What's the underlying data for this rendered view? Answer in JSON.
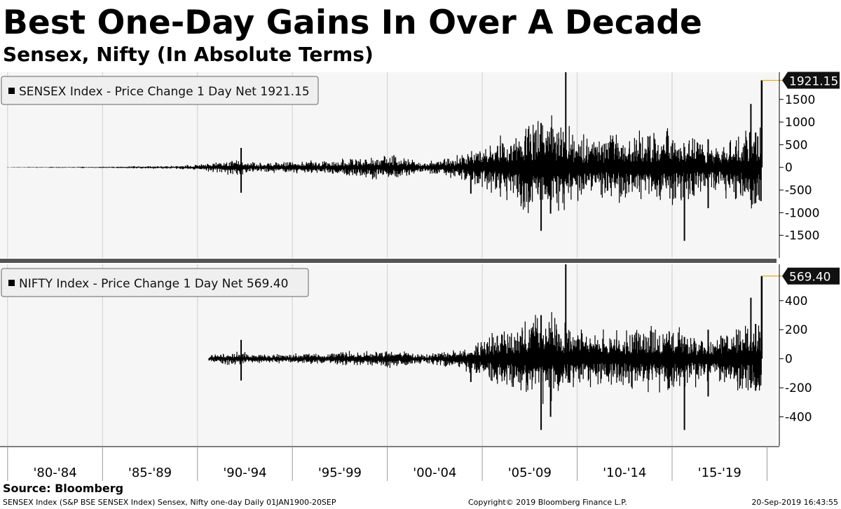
{
  "title": "Best One-Day Gains In Over A Decade",
  "subtitle": "Sensex, Nifty (In Absolute Terms)",
  "source": "Source: Bloomberg",
  "footer": {
    "left": "SENSEX Index (S&P BSE SENSEX Index) Sensex, Nifty one-day  Daily 01JAN1900-20SEP",
    "center": "Copyright© 2019 Bloomberg Finance L.P.",
    "right": "20-Sep-2019 16:43:55"
  },
  "colors": {
    "series": "#000000",
    "last_marker": "#e8a200",
    "panel_bg": "#f6f6f6",
    "grid": "#cfcfcf"
  },
  "chart_data": [
    {
      "type": "bar",
      "panel": "top",
      "legend": "SENSEX Index - Price Change 1 Day Net 1921.15",
      "legend_position": "top-left",
      "last_value_label": "1921.15",
      "last_value": 1921.15,
      "ylim": [
        -2000,
        2100
      ],
      "yticks": [
        1500,
        1000,
        500,
        0,
        -500,
        -1000,
        -1500
      ],
      "ytick_labels": [
        "1500",
        "1000",
        "500",
        "0",
        "-500",
        "-1000",
        "-1500"
      ],
      "series_start": 1980,
      "volatility_by_year": [
        [
          1980,
          2
        ],
        [
          1985,
          6
        ],
        [
          1989,
          15
        ],
        [
          1990,
          25
        ],
        [
          1991,
          45
        ],
        [
          1992,
          70
        ],
        [
          1993,
          40
        ],
        [
          1995,
          45
        ],
        [
          1998,
          70
        ],
        [
          2000,
          110
        ],
        [
          2002,
          45
        ],
        [
          2003,
          70
        ],
        [
          2004,
          110
        ],
        [
          2006,
          260
        ],
        [
          2008,
          430
        ],
        [
          2009,
          380
        ],
        [
          2010,
          260
        ],
        [
          2013,
          280
        ],
        [
          2015,
          330
        ],
        [
          2017,
          200
        ],
        [
          2019,
          340
        ]
      ],
      "spikes": [
        {
          "x": 1992.3,
          "high": 430,
          "low": -560
        },
        {
          "x": 2004.4,
          "high": 110,
          "low": -580
        },
        {
          "x": 2008.1,
          "high": 980,
          "low": -1400
        },
        {
          "x": 2008.6,
          "high": 500,
          "low": -1020
        },
        {
          "x": 2009.4,
          "high": 2100,
          "low": -250
        },
        {
          "x": 2015.65,
          "high": 450,
          "low": -1620
        },
        {
          "x": 2016.9,
          "high": 620,
          "low": -900
        },
        {
          "x": 2019.15,
          "high": 1400,
          "low": -720
        },
        {
          "x": 2019.4,
          "high": 770,
          "low": -790
        }
      ],
      "last_bar": {
        "x": 2019.72,
        "value": 1921.15
      }
    },
    {
      "type": "bar",
      "panel": "bottom",
      "legend": "NIFTY Index - Price Change 1 Day Net 569.40",
      "legend_position": "top-left",
      "last_value_label": "569.40",
      "last_value": 569.4,
      "ylim": [
        -600,
        650
      ],
      "yticks": [
        400,
        200,
        0,
        -200,
        -400
      ],
      "ytick_labels": [
        "400",
        "200",
        "0",
        "-200",
        "-400"
      ],
      "series_start": 1990.6,
      "volatility_by_year": [
        [
          1990.6,
          10
        ],
        [
          1992,
          18
        ],
        [
          1994,
          12
        ],
        [
          1997,
          15
        ],
        [
          2000,
          25
        ],
        [
          2002,
          12
        ],
        [
          2004,
          30
        ],
        [
          2006,
          75
        ],
        [
          2008,
          125
        ],
        [
          2009,
          110
        ],
        [
          2010,
          75
        ],
        [
          2013,
          80
        ],
        [
          2015,
          95
        ],
        [
          2017,
          55
        ],
        [
          2019,
          100
        ]
      ],
      "spikes": [
        {
          "x": 1992.3,
          "high": 130,
          "low": -150
        },
        {
          "x": 2004.4,
          "high": 40,
          "low": -160
        },
        {
          "x": 2008.1,
          "high": 300,
          "low": -490
        },
        {
          "x": 2008.6,
          "high": 180,
          "low": -400
        },
        {
          "x": 2009.4,
          "high": 650,
          "low": -80
        },
        {
          "x": 2015.65,
          "high": 150,
          "low": -490
        },
        {
          "x": 2016.9,
          "high": 200,
          "low": -260
        },
        {
          "x": 2019.15,
          "high": 420,
          "low": -200
        },
        {
          "x": 2019.4,
          "high": 240,
          "low": -220
        }
      ],
      "last_bar": {
        "x": 2019.72,
        "value": 569.4
      }
    }
  ],
  "x_axis": {
    "range": [
      1979.6,
      2020.5
    ],
    "labels": [
      "'80-'84",
      "'85-'89",
      "'90-'94",
      "'95-'99",
      "'00-'04",
      "'05-'09",
      "'10-'14",
      "'15-'19"
    ],
    "label_spans": [
      [
        1980,
        1985
      ],
      [
        1985,
        1990
      ],
      [
        1990,
        1995
      ],
      [
        1995,
        2000
      ],
      [
        2000,
        2005
      ],
      [
        2005,
        2010
      ],
      [
        2010,
        2015
      ],
      [
        2015,
        2020
      ]
    ]
  }
}
